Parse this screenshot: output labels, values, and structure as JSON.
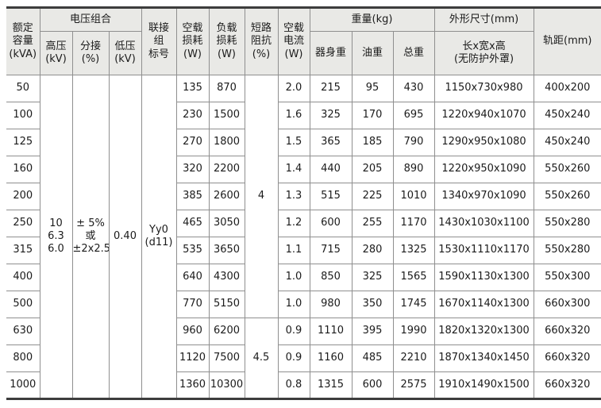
{
  "table": {
    "header": {
      "capacity": "额定\n容量\n(kVA)",
      "voltage_group": "电压组合",
      "hv": "高压\n(kV)",
      "tap": "分接\n(%)",
      "lv": "低压\n(kV)",
      "vector_group": "联接\n组\n标号",
      "no_load_loss": "空载\n损耗\n(W)",
      "load_loss": "负载\n损耗\n(W)",
      "impedance": "短路\n阻抗\n(%)",
      "no_load_current": "空载\n电流\n(W)",
      "weight_group": "重量(kg)",
      "body_weight": "器身重",
      "oil_weight": "油重",
      "total_weight": "总重",
      "dimensions_group": "外形尺寸(mm)",
      "dimensions_sub": "长x宽x高\n(无防护外罩)",
      "gauge": "轨距(mm)"
    },
    "merged": {
      "hv": "10\n6.3\n6.0",
      "tap": "± 5%\n或\n±2x2.5",
      "lv": "0.40",
      "vector_group": "Yy0\n(d11)",
      "impedance_groups": [
        {
          "value": "4",
          "rowspan": 9
        },
        {
          "value": "4.5",
          "rowspan": 3
        }
      ]
    },
    "rows": [
      {
        "capacity": "50",
        "no_load_loss": "135",
        "load_loss": "870",
        "no_load_current": "2.0",
        "body_weight": "215",
        "oil_weight": "95",
        "total_weight": "430",
        "dimensions": "1150x730x980",
        "gauge": "400x200"
      },
      {
        "capacity": "100",
        "no_load_loss": "230",
        "load_loss": "1500",
        "no_load_current": "1.6",
        "body_weight": "325",
        "oil_weight": "170",
        "total_weight": "695",
        "dimensions": "1220x940x1070",
        "gauge": "450x240"
      },
      {
        "capacity": "125",
        "no_load_loss": "270",
        "load_loss": "1800",
        "no_load_current": "1.5",
        "body_weight": "365",
        "oil_weight": "185",
        "total_weight": "790",
        "dimensions": "1290x950x1080",
        "gauge": "450x240"
      },
      {
        "capacity": "160",
        "no_load_loss": "320",
        "load_loss": "2200",
        "no_load_current": "1.4",
        "body_weight": "440",
        "oil_weight": "205",
        "total_weight": "890",
        "dimensions": "1220x950x1090",
        "gauge": "550x260"
      },
      {
        "capacity": "200",
        "no_load_loss": "385",
        "load_loss": "2600",
        "no_load_current": "1.3",
        "body_weight": "515",
        "oil_weight": "225",
        "total_weight": "1010",
        "dimensions": "1340x970x1090",
        "gauge": "550x260"
      },
      {
        "capacity": "250",
        "no_load_loss": "465",
        "load_loss": "3050",
        "no_load_current": "1.2",
        "body_weight": "600",
        "oil_weight": "255",
        "total_weight": "1170",
        "dimensions": "1430x1030x1100",
        "gauge": "550x280"
      },
      {
        "capacity": "315",
        "no_load_loss": "535",
        "load_loss": "3650",
        "no_load_current": "1.1",
        "body_weight": "715",
        "oil_weight": "280",
        "total_weight": "1325",
        "dimensions": "1530x1110x1170",
        "gauge": "550x280"
      },
      {
        "capacity": "400",
        "no_load_loss": "640",
        "load_loss": "4300",
        "no_load_current": "1.0",
        "body_weight": "850",
        "oil_weight": "325",
        "total_weight": "1565",
        "dimensions": "1590x1130x1300",
        "gauge": "550x300"
      },
      {
        "capacity": "500",
        "no_load_loss": "770",
        "load_loss": "5150",
        "no_load_current": "1.0",
        "body_weight": "980",
        "oil_weight": "350",
        "total_weight": "1745",
        "dimensions": "1670x1140x1300",
        "gauge": "660x300"
      },
      {
        "capacity": "630",
        "no_load_loss": "960",
        "load_loss": "6200",
        "no_load_current": "0.9",
        "body_weight": "1110",
        "oil_weight": "395",
        "total_weight": "1990",
        "dimensions": "1820x1320x1300",
        "gauge": "660x320"
      },
      {
        "capacity": "800",
        "no_load_loss": "1120",
        "load_loss": "7500",
        "no_load_current": "0.9",
        "body_weight": "1160",
        "oil_weight": "485",
        "total_weight": "2210",
        "dimensions": "1870x1340x1450",
        "gauge": "660x320"
      },
      {
        "capacity": "1000",
        "no_load_loss": "1360",
        "load_loss": "10300",
        "no_load_current": "0.8",
        "body_weight": "1315",
        "oil_weight": "600",
        "total_weight": "2575",
        "dimensions": "1910x1490x1500",
        "gauge": "660x320"
      }
    ]
  },
  "colors": {
    "header_bg": "#e9e9e6",
    "border_thin": "#8f8f8f",
    "border_thick": "#3d3d3d",
    "text": "#1b1b1b",
    "row_bg": "#ffffff"
  }
}
